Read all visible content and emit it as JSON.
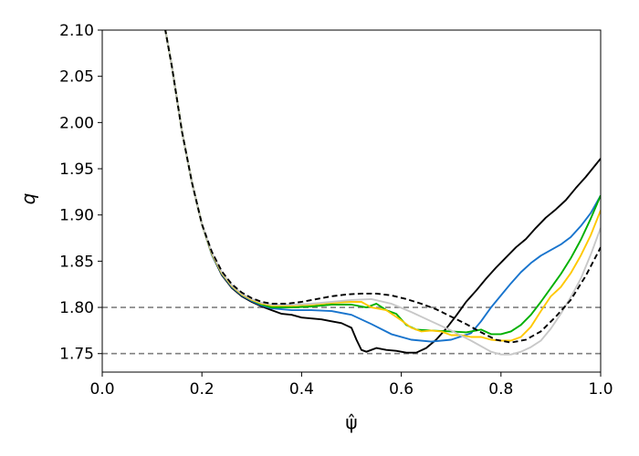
{
  "chart_data": {
    "type": "line",
    "title": "",
    "xlabel": "ψ̂",
    "ylabel": "q",
    "xlim": [
      0.0,
      1.0
    ],
    "ylim": [
      1.73,
      2.1
    ],
    "xticks": [
      "0.0",
      "0.2",
      "0.4",
      "0.6",
      "0.8",
      "1.0"
    ],
    "yticks": [
      "1.75",
      "1.80",
      "1.85",
      "1.90",
      "1.95",
      "2.00",
      "2.05",
      "2.10"
    ],
    "grid": false,
    "legend": "none",
    "hlines": [
      {
        "y": 1.8,
        "color": "#808080",
        "style": "dashed"
      },
      {
        "y": 1.75,
        "color": "#808080",
        "style": "dashed"
      }
    ],
    "series": [
      {
        "color": "#000000",
        "style": "solid",
        "points": [
          [
            0.12,
            2.12
          ],
          [
            0.14,
            2.06
          ],
          [
            0.16,
            1.99
          ],
          [
            0.18,
            1.935
          ],
          [
            0.2,
            1.89
          ],
          [
            0.22,
            1.857
          ],
          [
            0.24,
            1.835
          ],
          [
            0.26,
            1.821
          ],
          [
            0.28,
            1.812
          ],
          [
            0.3,
            1.806
          ],
          [
            0.32,
            1.801
          ],
          [
            0.34,
            1.797
          ],
          [
            0.36,
            1.793
          ],
          [
            0.38,
            1.792
          ],
          [
            0.4,
            1.789
          ],
          [
            0.42,
            1.788
          ],
          [
            0.44,
            1.787
          ],
          [
            0.46,
            1.785
          ],
          [
            0.48,
            1.783
          ],
          [
            0.5,
            1.778
          ],
          [
            0.51,
            1.765
          ],
          [
            0.52,
            1.754
          ],
          [
            0.53,
            1.752
          ],
          [
            0.55,
            1.756
          ],
          [
            0.57,
            1.754
          ],
          [
            0.59,
            1.753
          ],
          [
            0.61,
            1.751
          ],
          [
            0.63,
            1.751
          ],
          [
            0.65,
            1.756
          ],
          [
            0.67,
            1.765
          ],
          [
            0.69,
            1.777
          ],
          [
            0.71,
            1.791
          ],
          [
            0.73,
            1.806
          ],
          [
            0.75,
            1.818
          ],
          [
            0.77,
            1.831
          ],
          [
            0.79,
            1.843
          ],
          [
            0.81,
            1.854
          ],
          [
            0.83,
            1.865
          ],
          [
            0.85,
            1.874
          ],
          [
            0.87,
            1.886
          ],
          [
            0.89,
            1.897
          ],
          [
            0.91,
            1.906
          ],
          [
            0.93,
            1.916
          ],
          [
            0.95,
            1.929
          ],
          [
            0.97,
            1.941
          ],
          [
            1.0,
            1.961
          ]
        ]
      },
      {
        "color": "#1874cd",
        "style": "solid",
        "points": [
          [
            0.12,
            2.12
          ],
          [
            0.14,
            2.06
          ],
          [
            0.16,
            1.99
          ],
          [
            0.18,
            1.935
          ],
          [
            0.2,
            1.89
          ],
          [
            0.22,
            1.857
          ],
          [
            0.24,
            1.836
          ],
          [
            0.26,
            1.822
          ],
          [
            0.28,
            1.813
          ],
          [
            0.3,
            1.807
          ],
          [
            0.32,
            1.802
          ],
          [
            0.34,
            1.799
          ],
          [
            0.38,
            1.797
          ],
          [
            0.42,
            1.797
          ],
          [
            0.46,
            1.796
          ],
          [
            0.5,
            1.792
          ],
          [
            0.54,
            1.782
          ],
          [
            0.58,
            1.771
          ],
          [
            0.62,
            1.765
          ],
          [
            0.66,
            1.763
          ],
          [
            0.7,
            1.765
          ],
          [
            0.74,
            1.772
          ],
          [
            0.76,
            1.785
          ],
          [
            0.78,
            1.8
          ],
          [
            0.8,
            1.813
          ],
          [
            0.82,
            1.826
          ],
          [
            0.84,
            1.838
          ],
          [
            0.86,
            1.848
          ],
          [
            0.88,
            1.856
          ],
          [
            0.9,
            1.862
          ],
          [
            0.92,
            1.868
          ],
          [
            0.94,
            1.876
          ],
          [
            0.96,
            1.888
          ],
          [
            0.98,
            1.902
          ],
          [
            1.0,
            1.921
          ]
        ]
      },
      {
        "color": "#00b000",
        "style": "solid",
        "points": [
          [
            0.12,
            2.12
          ],
          [
            0.14,
            2.06
          ],
          [
            0.16,
            1.99
          ],
          [
            0.18,
            1.935
          ],
          [
            0.2,
            1.89
          ],
          [
            0.22,
            1.858
          ],
          [
            0.24,
            1.837
          ],
          [
            0.26,
            1.823
          ],
          [
            0.28,
            1.814
          ],
          [
            0.3,
            1.808
          ],
          [
            0.32,
            1.803
          ],
          [
            0.34,
            1.8
          ],
          [
            0.38,
            1.8
          ],
          [
            0.42,
            1.801
          ],
          [
            0.46,
            1.803
          ],
          [
            0.5,
            1.803
          ],
          [
            0.53,
            1.8
          ],
          [
            0.55,
            1.804
          ],
          [
            0.57,
            1.797
          ],
          [
            0.59,
            1.793
          ],
          [
            0.61,
            1.781
          ],
          [
            0.63,
            1.776
          ],
          [
            0.66,
            1.775
          ],
          [
            0.7,
            1.774
          ],
          [
            0.73,
            1.773
          ],
          [
            0.76,
            1.776
          ],
          [
            0.78,
            1.771
          ],
          [
            0.8,
            1.771
          ],
          [
            0.82,
            1.774
          ],
          [
            0.84,
            1.781
          ],
          [
            0.86,
            1.792
          ],
          [
            0.88,
            1.806
          ],
          [
            0.9,
            1.821
          ],
          [
            0.92,
            1.836
          ],
          [
            0.94,
            1.853
          ],
          [
            0.96,
            1.873
          ],
          [
            0.98,
            1.896
          ],
          [
            1.0,
            1.921
          ]
        ]
      },
      {
        "color": "#ffc800",
        "style": "solid",
        "points": [
          [
            0.12,
            2.12
          ],
          [
            0.14,
            2.06
          ],
          [
            0.16,
            1.99
          ],
          [
            0.18,
            1.935
          ],
          [
            0.2,
            1.89
          ],
          [
            0.22,
            1.858
          ],
          [
            0.24,
            1.837
          ],
          [
            0.26,
            1.823
          ],
          [
            0.28,
            1.814
          ],
          [
            0.3,
            1.808
          ],
          [
            0.32,
            1.804
          ],
          [
            0.34,
            1.802
          ],
          [
            0.38,
            1.802
          ],
          [
            0.42,
            1.803
          ],
          [
            0.46,
            1.805
          ],
          [
            0.5,
            1.806
          ],
          [
            0.52,
            1.806
          ],
          [
            0.54,
            1.8
          ],
          [
            0.57,
            1.797
          ],
          [
            0.6,
            1.786
          ],
          [
            0.62,
            1.778
          ],
          [
            0.64,
            1.774
          ],
          [
            0.66,
            1.775
          ],
          [
            0.68,
            1.774
          ],
          [
            0.7,
            1.77
          ],
          [
            0.72,
            1.77
          ],
          [
            0.74,
            1.768
          ],
          [
            0.76,
            1.768
          ],
          [
            0.78,
            1.765
          ],
          [
            0.8,
            1.764
          ],
          [
            0.82,
            1.764
          ],
          [
            0.84,
            1.768
          ],
          [
            0.86,
            1.779
          ],
          [
            0.88,
            1.796
          ],
          [
            0.9,
            1.812
          ],
          [
            0.92,
            1.822
          ],
          [
            0.94,
            1.837
          ],
          [
            0.96,
            1.856
          ],
          [
            0.98,
            1.878
          ],
          [
            1.0,
            1.905
          ]
        ]
      },
      {
        "color": "#c8c8c8",
        "style": "solid",
        "points": [
          [
            0.12,
            2.12
          ],
          [
            0.14,
            2.06
          ],
          [
            0.16,
            1.99
          ],
          [
            0.18,
            1.935
          ],
          [
            0.2,
            1.89
          ],
          [
            0.22,
            1.859
          ],
          [
            0.24,
            1.838
          ],
          [
            0.26,
            1.824
          ],
          [
            0.28,
            1.815
          ],
          [
            0.3,
            1.809
          ],
          [
            0.32,
            1.805
          ],
          [
            0.34,
            1.803
          ],
          [
            0.38,
            1.803
          ],
          [
            0.42,
            1.804
          ],
          [
            0.46,
            1.806
          ],
          [
            0.5,
            1.808
          ],
          [
            0.54,
            1.809
          ],
          [
            0.58,
            1.804
          ],
          [
            0.62,
            1.795
          ],
          [
            0.66,
            1.785
          ],
          [
            0.7,
            1.775
          ],
          [
            0.74,
            1.764
          ],
          [
            0.78,
            1.752
          ],
          [
            0.8,
            1.749
          ],
          [
            0.82,
            1.749
          ],
          [
            0.84,
            1.752
          ],
          [
            0.86,
            1.757
          ],
          [
            0.88,
            1.764
          ],
          [
            0.9,
            1.777
          ],
          [
            0.92,
            1.793
          ],
          [
            0.94,
            1.811
          ],
          [
            0.96,
            1.831
          ],
          [
            0.98,
            1.857
          ],
          [
            1.0,
            1.886
          ]
        ]
      },
      {
        "color": "#000000",
        "style": "dashed",
        "points": [
          [
            0.12,
            2.12
          ],
          [
            0.14,
            2.06
          ],
          [
            0.16,
            1.99
          ],
          [
            0.18,
            1.935
          ],
          [
            0.2,
            1.89
          ],
          [
            0.22,
            1.86
          ],
          [
            0.24,
            1.839
          ],
          [
            0.26,
            1.825
          ],
          [
            0.28,
            1.816
          ],
          [
            0.3,
            1.81
          ],
          [
            0.32,
            1.806
          ],
          [
            0.34,
            1.804
          ],
          [
            0.37,
            1.804
          ],
          [
            0.4,
            1.806
          ],
          [
            0.43,
            1.809
          ],
          [
            0.46,
            1.812
          ],
          [
            0.49,
            1.814
          ],
          [
            0.52,
            1.815
          ],
          [
            0.55,
            1.815
          ],
          [
            0.58,
            1.813
          ],
          [
            0.61,
            1.809
          ],
          [
            0.64,
            1.804
          ],
          [
            0.67,
            1.798
          ],
          [
            0.7,
            1.79
          ],
          [
            0.73,
            1.782
          ],
          [
            0.76,
            1.773
          ],
          [
            0.79,
            1.765
          ],
          [
            0.82,
            1.762
          ],
          [
            0.85,
            1.765
          ],
          [
            0.88,
            1.774
          ],
          [
            0.91,
            1.79
          ],
          [
            0.94,
            1.808
          ],
          [
            0.97,
            1.834
          ],
          [
            1.0,
            1.865
          ]
        ]
      }
    ]
  }
}
